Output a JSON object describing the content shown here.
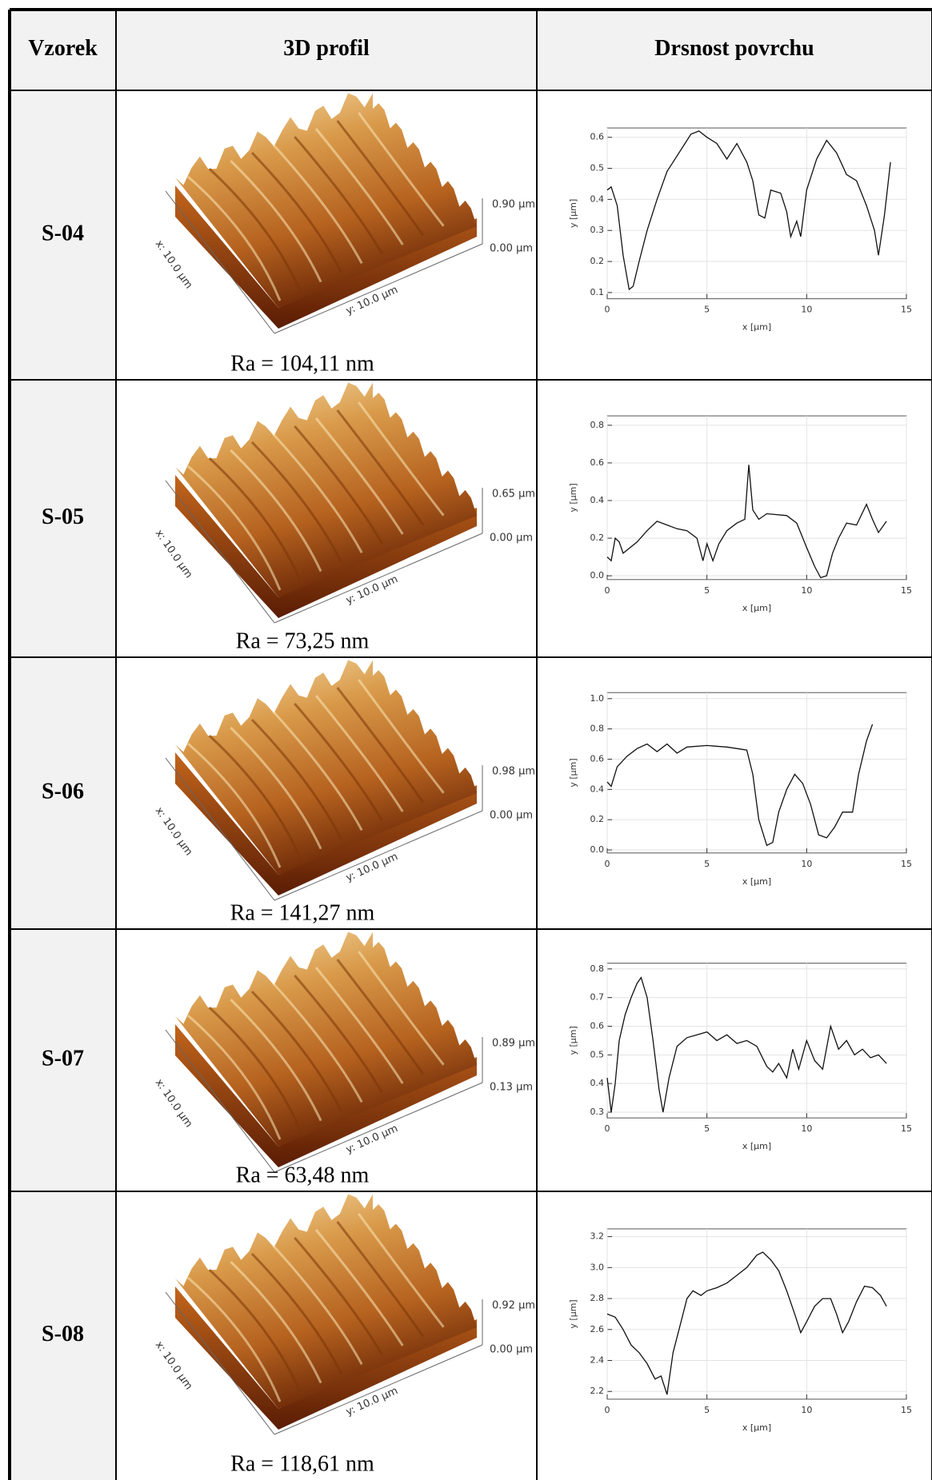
{
  "header": {
    "sample": "Vzorek",
    "profile": "3D profil",
    "roughness": "Drsnost povrchu"
  },
  "rows": [
    {
      "sample": "S-04",
      "profile": {
        "x_label": "x: 10.0 µm",
        "y_label": "y: 10.0 µm",
        "z_max": "0.90 µm",
        "z_min": "0.00 µm",
        "ra": "Ra = 104,11 nm"
      },
      "roughness": {
        "type": "line",
        "xlabel": "x [µm]",
        "ylabel": "y [µm]",
        "color": "#111111",
        "xlim": [
          0,
          15
        ],
        "xticks": [
          0,
          5,
          10,
          15
        ],
        "ylim": [
          0.08,
          0.63
        ],
        "yticks": [
          0.1,
          0.2,
          0.3,
          0.4,
          0.5,
          0.6
        ],
        "grid": true,
        "x": [
          0,
          0.2,
          0.5,
          0.8,
          1.1,
          1.3,
          1.6,
          2,
          2.5,
          3,
          3.3,
          3.8,
          4.2,
          4.6,
          5,
          5.5,
          6,
          6.5,
          7,
          7.3,
          7.6,
          7.9,
          8.2,
          8.7,
          9,
          9.2,
          9.5,
          9.7,
          10,
          10.5,
          11,
          11.5,
          12,
          12.5,
          13,
          13.4,
          13.6,
          13.9,
          14.2
        ],
        "values": [
          0.43,
          0.44,
          0.38,
          0.22,
          0.11,
          0.12,
          0.2,
          0.3,
          0.4,
          0.49,
          0.52,
          0.57,
          0.61,
          0.62,
          0.6,
          0.58,
          0.53,
          0.58,
          0.52,
          0.46,
          0.35,
          0.34,
          0.43,
          0.42,
          0.36,
          0.28,
          0.33,
          0.28,
          0.43,
          0.53,
          0.59,
          0.55,
          0.48,
          0.46,
          0.38,
          0.3,
          0.22,
          0.35,
          0.52
        ]
      }
    },
    {
      "sample": "S-05",
      "profile": {
        "x_label": "x: 10.0 µm",
        "y_label": "y: 10.0 µm",
        "z_max": "0.65 µm",
        "z_min": "0.00 µm",
        "ra": "Ra = 73,25 nm"
      },
      "roughness": {
        "type": "line",
        "xlabel": "x [µm]",
        "ylabel": "y [µm]",
        "color": "#111111",
        "xlim": [
          0,
          15
        ],
        "xticks": [
          0,
          5,
          10,
          15
        ],
        "ylim": [
          -0.02,
          0.85
        ],
        "yticks": [
          {
            "value": 0,
            "label": "0.0"
          },
          0.2,
          0.4,
          0.6,
          0.8
        ],
        "grid": true,
        "x": [
          0,
          0.2,
          0.4,
          0.6,
          0.8,
          1.5,
          2,
          2.5,
          3,
          3.5,
          4,
          4.5,
          4.8,
          5,
          5.3,
          5.6,
          6,
          6.5,
          6.9,
          7.1,
          7.3,
          7.6,
          8,
          9,
          9.5,
          10,
          10.4,
          10.7,
          11,
          11.3,
          11.6,
          12,
          12.5,
          13,
          13.3,
          13.6,
          14
        ],
        "values": [
          0.1,
          0.08,
          0.2,
          0.18,
          0.12,
          0.18,
          0.24,
          0.29,
          0.27,
          0.25,
          0.24,
          0.2,
          0.08,
          0.17,
          0.08,
          0.17,
          0.24,
          0.28,
          0.3,
          0.59,
          0.35,
          0.3,
          0.33,
          0.32,
          0.28,
          0.15,
          0.05,
          -0.01,
          0,
          0.12,
          0.2,
          0.28,
          0.27,
          0.38,
          0.3,
          0.23,
          0.29
        ]
      }
    },
    {
      "sample": "S-06",
      "profile": {
        "x_label": "x: 10.0 µm",
        "y_label": "y: 10.0 µm",
        "z_max": "0.98 µm",
        "z_min": "0.00 µm",
        "ra": "Ra = 141,27 nm"
      },
      "roughness": {
        "type": "line",
        "xlabel": "x [µm]",
        "ylabel": "y [µm]",
        "color": "#111111",
        "xlim": [
          0,
          15
        ],
        "xticks": [
          0,
          5,
          10,
          15
        ],
        "ylim": [
          -0.02,
          1.04
        ],
        "yticks": [
          {
            "value": 0,
            "label": "0.0"
          },
          0.2,
          0.4,
          0.6,
          0.8,
          {
            "value": 1,
            "label": "1.0"
          }
        ],
        "grid": true,
        "x": [
          0,
          0.2,
          0.5,
          1,
          1.5,
          2,
          2.5,
          3,
          3.5,
          4,
          5,
          6,
          6.5,
          7,
          7.3,
          7.6,
          8,
          8.3,
          8.6,
          9,
          9.4,
          9.8,
          10.2,
          10.6,
          11,
          11.4,
          11.8,
          12.3,
          12.6,
          13,
          13.3
        ],
        "values": [
          0.45,
          0.42,
          0.55,
          0.62,
          0.67,
          0.7,
          0.65,
          0.7,
          0.64,
          0.68,
          0.69,
          0.68,
          0.67,
          0.66,
          0.5,
          0.2,
          0.03,
          0.05,
          0.25,
          0.4,
          0.5,
          0.44,
          0.3,
          0.1,
          0.08,
          0.15,
          0.25,
          0.25,
          0.5,
          0.72,
          0.83
        ]
      }
    },
    {
      "sample": "S-07",
      "profile": {
        "x_label": "x: 10.0 µm",
        "y_label": "y: 10.0 µm",
        "z_max": "0.89 µm",
        "z_min": "0.13 µm",
        "ra": "Ra = 63,48 nm"
      },
      "roughness": {
        "type": "line",
        "xlabel": "x [µm]",
        "ylabel": "y [µm]",
        "color": "#111111",
        "xlim": [
          0,
          15
        ],
        "xticks": [
          0,
          5,
          10,
          15
        ],
        "ylim": [
          0.28,
          0.82
        ],
        "yticks": [
          0.3,
          0.4,
          0.5,
          0.6,
          0.7,
          0.8
        ],
        "grid": true,
        "x": [
          0,
          0.2,
          0.4,
          0.6,
          0.9,
          1.2,
          1.5,
          1.7,
          2,
          2.3,
          2.6,
          2.8,
          3.1,
          3.5,
          4,
          4.5,
          5,
          5.5,
          6,
          6.5,
          7,
          7.5,
          8,
          8.3,
          8.6,
          9,
          9.3,
          9.6,
          10,
          10.4,
          10.8,
          11.2,
          11.6,
          12,
          12.4,
          12.8,
          13.2,
          13.6,
          14
        ],
        "values": [
          0.42,
          0.3,
          0.4,
          0.55,
          0.64,
          0.7,
          0.75,
          0.77,
          0.7,
          0.55,
          0.38,
          0.3,
          0.42,
          0.53,
          0.56,
          0.57,
          0.58,
          0.55,
          0.57,
          0.54,
          0.55,
          0.53,
          0.46,
          0.44,
          0.47,
          0.42,
          0.52,
          0.45,
          0.55,
          0.48,
          0.45,
          0.6,
          0.52,
          0.55,
          0.5,
          0.52,
          0.49,
          0.5,
          0.47
        ]
      }
    },
    {
      "sample": "S-08",
      "profile": {
        "x_label": "x: 10.0 µm",
        "y_label": "y: 10.0 µm",
        "z_max": "0.92 µm",
        "z_min": "0.00 µm",
        "ra": "Ra = 118,61 nm"
      },
      "roughness": {
        "type": "line",
        "xlabel": "x [µm]",
        "ylabel": "y [µm]",
        "color": "#111111",
        "xlim": [
          0,
          15
        ],
        "xticks": [
          0,
          5,
          10,
          15
        ],
        "ylim": [
          2.15,
          3.25
        ],
        "yticks": [
          2.2,
          2.4,
          2.6,
          2.8,
          {
            "value": 3,
            "label": "3.0"
          },
          3.2
        ],
        "grid": true,
        "x": [
          0,
          0.4,
          0.8,
          1.2,
          1.6,
          2,
          2.4,
          2.7,
          3,
          3.3,
          3.7,
          4,
          4.3,
          4.7,
          5,
          5.5,
          6,
          6.5,
          7,
          7.5,
          7.8,
          8.2,
          8.6,
          9,
          9.4,
          9.7,
          10,
          10.4,
          10.8,
          11.2,
          11.5,
          11.8,
          12.1,
          12.5,
          12.9,
          13.3,
          13.7,
          14
        ],
        "values": [
          2.7,
          2.68,
          2.6,
          2.5,
          2.45,
          2.38,
          2.28,
          2.3,
          2.18,
          2.45,
          2.65,
          2.8,
          2.85,
          2.82,
          2.85,
          2.87,
          2.9,
          2.95,
          3,
          3.08,
          3.1,
          3.05,
          2.98,
          2.85,
          2.7,
          2.58,
          2.65,
          2.75,
          2.8,
          2.8,
          2.7,
          2.58,
          2.65,
          2.78,
          2.88,
          2.87,
          2.82,
          2.75
        ]
      }
    }
  ]
}
